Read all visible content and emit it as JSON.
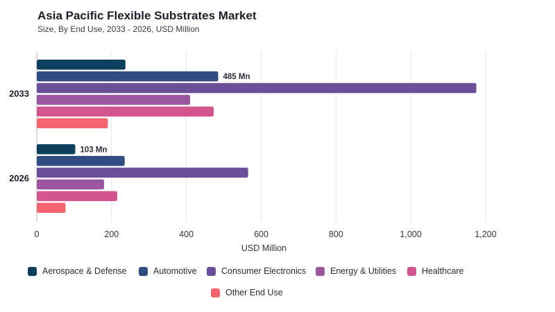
{
  "title": "Asia Pacific Flexible Substrates Market",
  "subtitle": "Size, By End Use, 2033 - 2026, USD Million",
  "chart_data": {
    "type": "bar",
    "orientation": "horizontal",
    "title": "Asia Pacific Flexible Substrates Market",
    "subtitle": "Size, By End Use, 2033 - 2026, USD Million",
    "xlabel": "USD Million",
    "ylabel": "",
    "xlim": [
      0,
      1200
    ],
    "xticks": [
      0,
      200,
      400,
      600,
      800,
      1000,
      1200
    ],
    "xtick_labels": [
      "0",
      "200",
      "400",
      "600",
      "800",
      "1,000",
      "1,200"
    ],
    "categories": [
      "2033",
      "2026"
    ],
    "grid": true,
    "legend_position": "bottom",
    "series": [
      {
        "name": "Aerospace & Defense",
        "color": "#0e3f5c",
        "values": [
          237,
          103
        ]
      },
      {
        "name": "Automotive",
        "color": "#2f4d80",
        "values": [
          485,
          235
        ]
      },
      {
        "name": "Consumer Electronics",
        "color": "#6a4f99",
        "values": [
          1175,
          565
        ]
      },
      {
        "name": "Energy & Utilities",
        "color": "#9a569e",
        "values": [
          410,
          180
        ]
      },
      {
        "name": "Healthcare",
        "color": "#d4558f",
        "values": [
          473,
          215
        ]
      },
      {
        "name": "Other End Use",
        "color": "#f4646f",
        "values": [
          190,
          77
        ]
      }
    ],
    "data_labels": [
      {
        "category": "2033",
        "series": "Automotive",
        "text": "485 Mn"
      },
      {
        "category": "2026",
        "series": "Aerospace & Defense",
        "text": "103 Mn"
      }
    ]
  }
}
